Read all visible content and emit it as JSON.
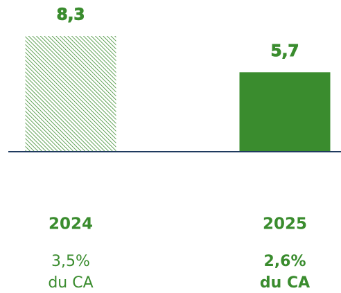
{
  "chart_data": {
    "type": "bar",
    "categories": [
      "2024",
      "2025"
    ],
    "values": [
      8.3,
      5.7
    ],
    "value_labels": [
      "8,3",
      "5,7"
    ],
    "color": "#3a8c2e",
    "bar_styles": [
      "hatch",
      "solid"
    ],
    "notes": [
      [
        "3,5%",
        "du CA"
      ],
      [
        "2,6%",
        "du CA"
      ]
    ],
    "note_emphasis": [
      false,
      true
    ]
  }
}
